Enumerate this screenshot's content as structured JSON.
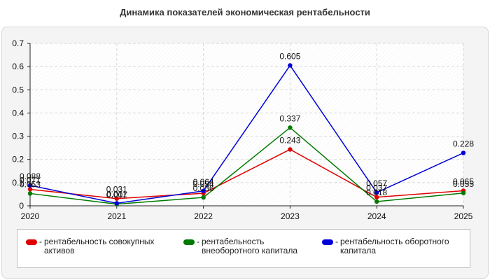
{
  "chart_data": {
    "type": "line",
    "title": "Динамика показателей экономическая рентабельности",
    "categories": [
      "2020",
      "2021",
      "2022",
      "2023",
      "2024",
      "2025"
    ],
    "ylim": [
      0,
      0.7
    ],
    "yticks": [
      "0",
      "0.1",
      "0.2",
      "0.3",
      "0.4",
      "0.5",
      "0.6",
      "0.7"
    ],
    "grid": true,
    "legend_position": "bottom",
    "series": [
      {
        "name": "рентабельность совокупных активов",
        "color": "#e00000",
        "values": [
          0.071,
          0.031,
          0.054,
          0.243,
          0.037,
          0.065
        ],
        "labels": [
          "0.071",
          "0.031",
          "0.054",
          "0.243",
          "0.037",
          "0.065"
        ]
      },
      {
        "name": "рентабельность внеоборотного капитала",
        "color": "#007a00",
        "values": [
          0.053,
          0.007,
          0.036,
          0.337,
          0.018,
          0.055
        ],
        "labels": [
          "0.053",
          "0.007",
          "0.036",
          "0.337",
          "0.018",
          "0.055"
        ]
      },
      {
        "name": "рентабельность оборотного капитала",
        "color": "#0000d8",
        "values": [
          0.088,
          0.011,
          0.064,
          0.605,
          0.057,
          0.228
        ],
        "labels": [
          "0.088",
          "0.011",
          "0.064",
          "0.605",
          "0.057",
          "0.228"
        ]
      }
    ]
  }
}
